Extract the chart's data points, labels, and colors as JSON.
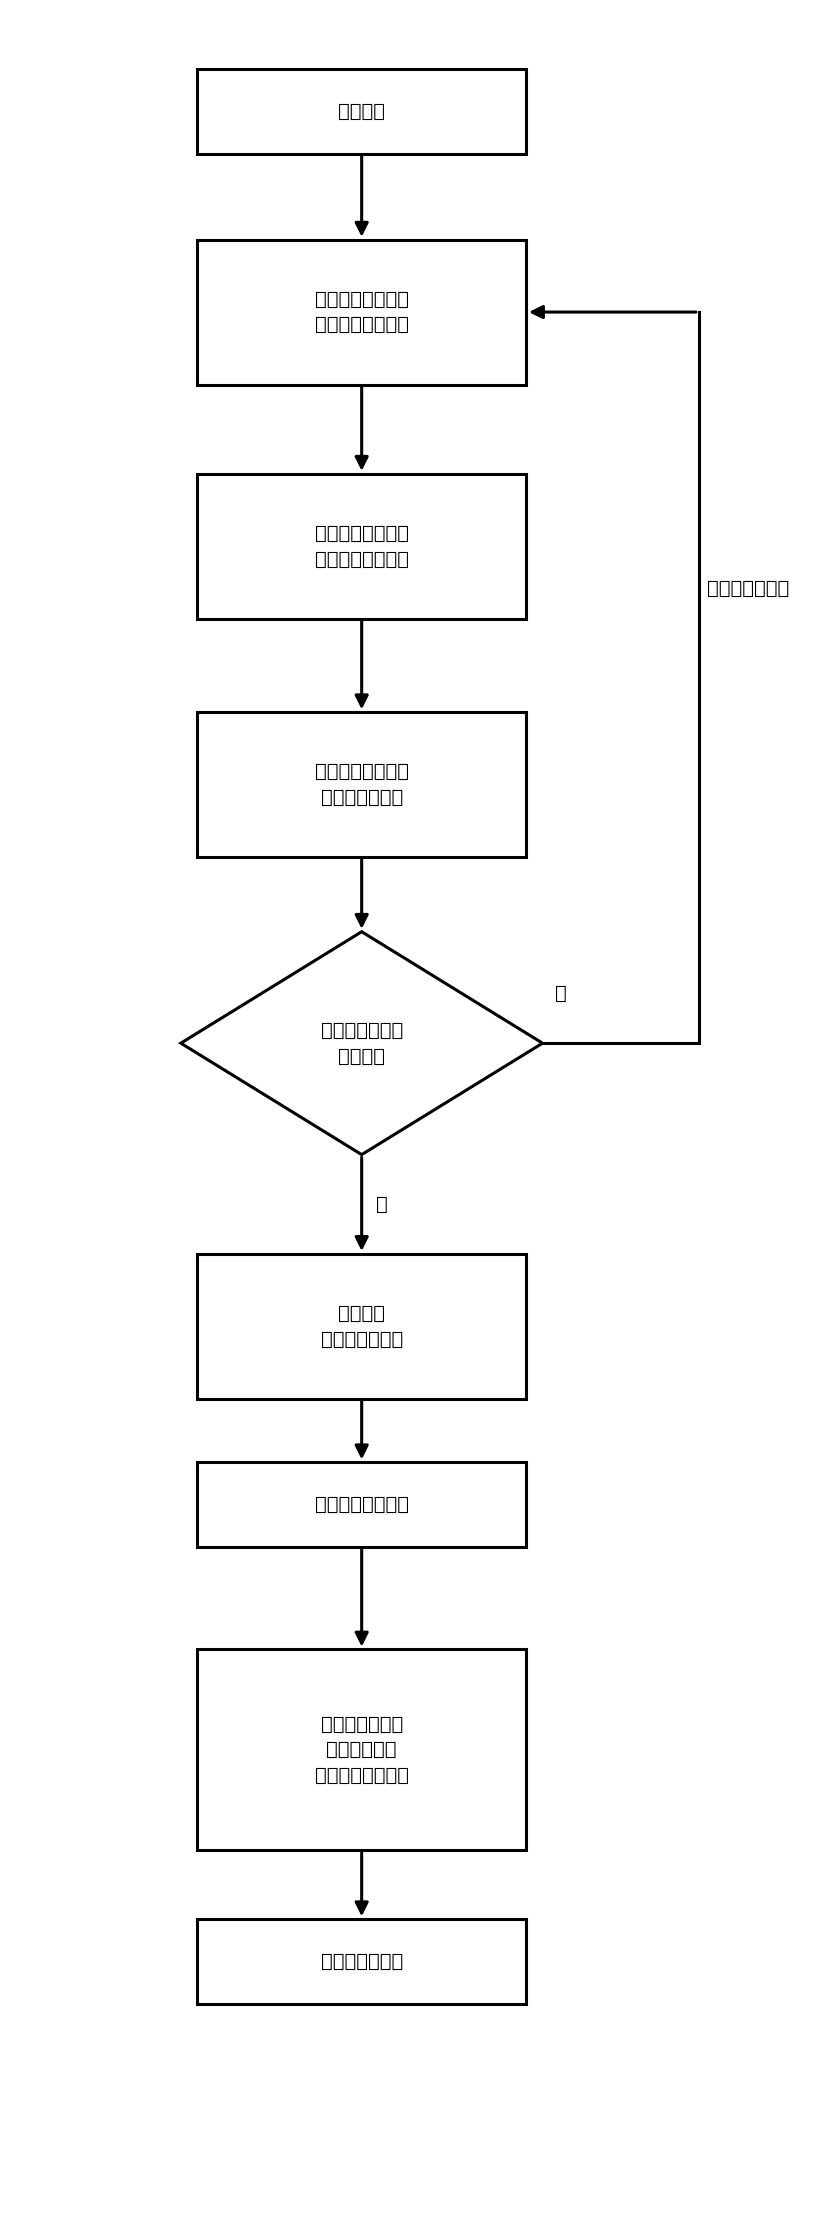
{
  "bg_color": "#ffffff",
  "border_color": "#000000",
  "text_color": "#000000",
  "box_fill": "#ffffff",
  "line_width": 2.2,
  "font_size": 14,
  "nodes": [
    {
      "id": "recv",
      "type": "rect",
      "label": "接收序列",
      "lines": 1
    },
    {
      "id": "slide",
      "type": "rect",
      "label": "滑动窗截取数据并\n进行滤波、降采样",
      "lines": 2
    },
    {
      "id": "search1",
      "type": "rect",
      "label": "根据时偏似然函数\n进行一维时偏搜索",
      "lines": 2
    },
    {
      "id": "combine",
      "type": "rect",
      "label": "多周期时偏似然函\n数值非相干合并",
      "lines": 2
    },
    {
      "id": "decision",
      "type": "diamond",
      "label": "合并结果最大值\n大于阈值",
      "lines": 2
    },
    {
      "id": "timing",
      "type": "rect",
      "label": "定时成功\n获得时偏估计值",
      "lines": 2
    },
    {
      "id": "frac",
      "type": "rect",
      "label": "估计小数部分频偏",
      "lines": 1
    },
    {
      "id": "search2",
      "type": "rect",
      "label": "根据同步序列的\n频偏似然函数\n进行一维频偏搜索",
      "lines": 3
    },
    {
      "id": "freqest",
      "type": "rect",
      "label": "获得频偏估计值",
      "lines": 1
    }
  ],
  "slide_label": "滑动窗向前滑动",
  "no_label": "否",
  "yes_label": "是"
}
